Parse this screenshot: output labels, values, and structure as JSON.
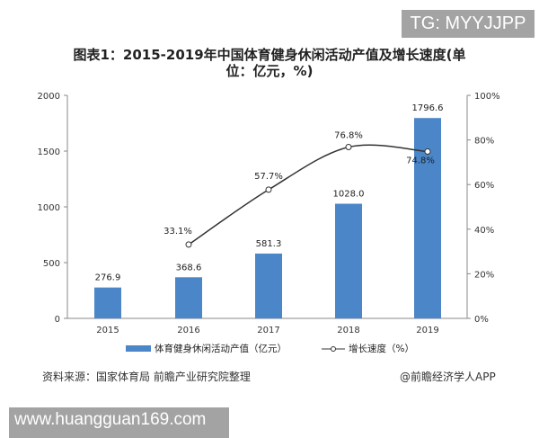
{
  "watermark_top": "TG: MYYJJPP",
  "watermark_bottom": "www.huangguan169.com",
  "source": "资料来源：国家体育局 前瞻产业研究院整理",
  "credit": "@前瞻经济学人APP",
  "chart_data": {
    "type": "bar+line",
    "title": "图表1：2015-2019年中国体育健身休闲活动产值及增长速度(单位：亿元，%)",
    "title_line1": "图表1：2015-2019年中国体育健身休闲活动产值及增长速度(单",
    "title_line2": "位：亿元，%)",
    "categories": [
      "2015",
      "2016",
      "2017",
      "2018",
      "2019"
    ],
    "series": [
      {
        "name": "体育健身休闲活动产值（亿元）",
        "type": "bar",
        "axis": "left",
        "color": "#4a86c8",
        "values": [
          276.9,
          368.6,
          581.3,
          1028.0,
          1796.6
        ],
        "labels": [
          "276.9",
          "368.6",
          "581.3",
          "1028.0",
          "1796.6"
        ]
      },
      {
        "name": "增长速度（%）",
        "type": "line",
        "axis": "right",
        "color": "#333333",
        "values": [
          null,
          33.1,
          57.7,
          76.8,
          74.8
        ],
        "labels": [
          "",
          "33.1%",
          "57.7%",
          "76.8%",
          "74.8%"
        ]
      }
    ],
    "left_axis": {
      "ylim": [
        0,
        2000
      ],
      "ticks": [
        "0",
        "500",
        "1000",
        "1500",
        "2000"
      ]
    },
    "right_axis": {
      "ylim": [
        0,
        100
      ],
      "ticks": [
        "0%",
        "20%",
        "40%",
        "60%",
        "80%",
        "100%"
      ]
    },
    "grid": false,
    "legend": "bottom"
  }
}
